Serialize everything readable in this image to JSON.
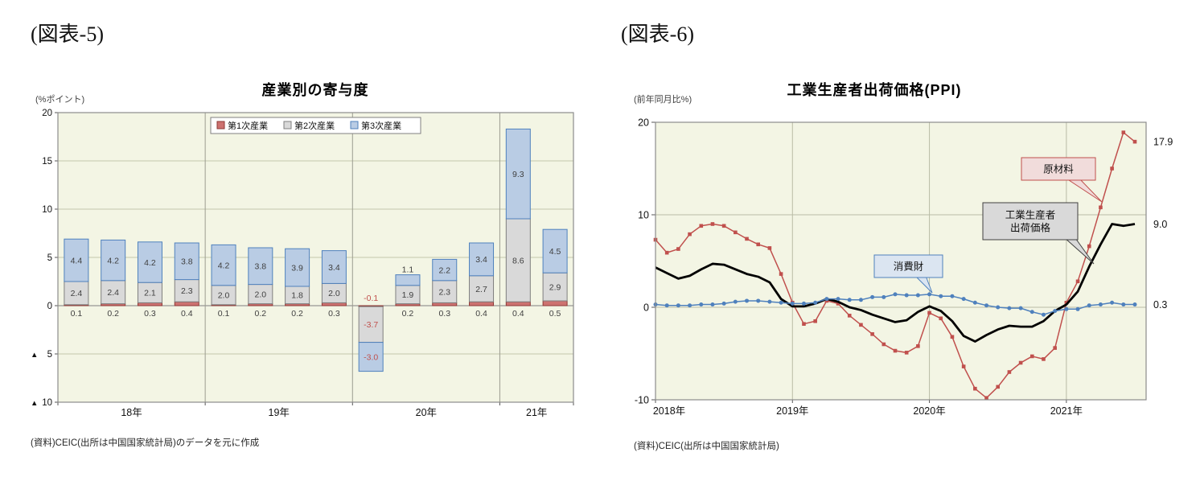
{
  "fig5": {
    "label": "(図表-5)",
    "title": "産業別の寄与度",
    "axis_unit": "(%ポイント)",
    "source": "(資料)CEIC(出所は中国国家統計局)のデータを元に作成"
  },
  "fig6": {
    "label": "(図表-6)",
    "title": "工業生産者出荷価格(PPI)",
    "axis_unit": "(前年同月比%)",
    "source": "(資料)CEIC(出所は中国国家統計局)"
  },
  "chart_data": [
    {
      "type": "bar",
      "title": "産業別の寄与度",
      "ylabel": "(%ポイント)",
      "ylim": [
        -10,
        20
      ],
      "stacked": true,
      "yticks": [
        {
          "value": 20,
          "label": "20"
        },
        {
          "value": 15,
          "label": "15"
        },
        {
          "value": 10,
          "label": "10"
        },
        {
          "value": 5,
          "label": "5"
        },
        {
          "value": 0,
          "label": "0"
        },
        {
          "value": -5,
          "label": "▲ 5"
        },
        {
          "value": -10,
          "label": "▲ 10"
        }
      ],
      "groups": [
        {
          "label": "18年",
          "count": 4
        },
        {
          "label": "19年",
          "count": 4
        },
        {
          "label": "20年",
          "count": 4
        },
        {
          "label": "21年",
          "count": 2
        }
      ],
      "series": [
        {
          "key": "primary-industry",
          "name": "第1次産業",
          "fill": "#cd7270",
          "border": "#8e3836",
          "values": [
            0.1,
            0.2,
            0.3,
            0.4,
            0.1,
            0.2,
            0.2,
            0.3,
            -0.1,
            0.2,
            0.3,
            0.4,
            0.4,
            0.5
          ]
        },
        {
          "key": "secondary-industry",
          "name": "第2次産業",
          "fill": "#d9d9d9",
          "border": "#7f7f7f",
          "values": [
            2.4,
            2.4,
            2.1,
            2.3,
            2.0,
            2.0,
            1.8,
            2.0,
            -3.7,
            1.9,
            2.3,
            2.7,
            8.6,
            2.9
          ]
        },
        {
          "key": "tertiary-industry",
          "name": "第3次産業",
          "fill": "#b9cce4",
          "border": "#4f81bd",
          "values": [
            4.4,
            4.2,
            4.2,
            3.8,
            4.2,
            3.8,
            3.9,
            3.4,
            -3.0,
            1.1,
            2.2,
            3.4,
            9.3,
            4.5
          ]
        }
      ],
      "legend_position": "top-center",
      "colors": {
        "plot_bg": "#f3f5e4",
        "grid": "#c3c6ad",
        "zero_line": "#808080",
        "frame": "#8c8c8c",
        "separator": "#9c9c90",
        "label": "#3f3f3f",
        "negative_label": "#c0504d"
      }
    },
    {
      "type": "line",
      "title": "工業生産者出荷価格(PPI)",
      "ylabel": "(前年同月比%)",
      "ylim": [
        -10,
        20
      ],
      "yticks": [
        {
          "value": 20,
          "label": "20"
        },
        {
          "value": 10,
          "label": "10"
        },
        {
          "value": 0,
          "label": "0"
        },
        {
          "value": -10,
          "label": "-10"
        }
      ],
      "xticks": [
        {
          "month": 0,
          "label": "2018年"
        },
        {
          "month": 12,
          "label": "2019年"
        },
        {
          "month": 24,
          "label": "2020年"
        },
        {
          "month": 36,
          "label": "2021年"
        }
      ],
      "series": [
        {
          "key": "raw-materials",
          "name": "原材料",
          "color": "#c0504d",
          "marker": "square",
          "width": 1.5,
          "end_label": "17.9",
          "values": [
            7.3,
            5.9,
            6.3,
            7.9,
            8.8,
            9.0,
            8.8,
            8.1,
            7.4,
            6.8,
            6.4,
            3.6,
            0.5,
            -1.8,
            -1.5,
            0.7,
            0.4,
            -0.9,
            -1.9,
            -2.9,
            -4.0,
            -4.7,
            -4.9,
            -4.2,
            -0.6,
            -1.2,
            -3.2,
            -6.4,
            -8.8,
            -9.8,
            -8.6,
            -7.0,
            -6.0,
            -5.3,
            -5.6,
            -4.4,
            0.5,
            2.8,
            6.6,
            10.8,
            15.0,
            18.9,
            17.9
          ]
        },
        {
          "key": "ppi",
          "name": "工業生産者出荷価格",
          "color": "#000000",
          "marker": "none",
          "width": 2.8,
          "end_label": "9.0",
          "values": [
            4.3,
            3.7,
            3.1,
            3.4,
            4.1,
            4.7,
            4.6,
            4.1,
            3.6,
            3.3,
            2.7,
            0.9,
            0.1,
            0.1,
            0.4,
            0.9,
            0.6,
            0.0,
            -0.3,
            -0.8,
            -1.2,
            -1.6,
            -1.4,
            -0.5,
            0.1,
            -0.4,
            -1.5,
            -3.1,
            -3.7,
            -3.0,
            -2.4,
            -2.0,
            -2.1,
            -2.1,
            -1.5,
            -0.4,
            0.3,
            1.7,
            4.4,
            6.8,
            9.0,
            8.8,
            9.0
          ]
        },
        {
          "key": "consumer-goods",
          "name": "消費財",
          "color": "#4f81bd",
          "marker": "circle",
          "width": 1.5,
          "end_label": "0.3",
          "values": [
            0.3,
            0.2,
            0.2,
            0.2,
            0.3,
            0.3,
            0.4,
            0.6,
            0.7,
            0.7,
            0.6,
            0.5,
            0.4,
            0.4,
            0.5,
            0.9,
            0.9,
            0.8,
            0.8,
            1.1,
            1.1,
            1.4,
            1.3,
            1.3,
            1.4,
            1.2,
            1.2,
            0.9,
            0.5,
            0.2,
            0.0,
            -0.1,
            -0.1,
            -0.5,
            -0.8,
            -0.4,
            -0.2,
            -0.2,
            0.2,
            0.3,
            0.5,
            0.3,
            0.3
          ]
        }
      ],
      "annotations": [
        {
          "key": "raw-materials-label",
          "lines": [
            "原材料"
          ],
          "fill": "#f1dcdb",
          "border": "#c0504d"
        },
        {
          "key": "ppi-label",
          "lines": [
            "工業生産者",
            "出荷価格"
          ],
          "fill": "#d9d9d9",
          "border": "#404040"
        },
        {
          "key": "consumer-goods-label",
          "lines": [
            "消費財"
          ],
          "fill": "#dbe5f1",
          "border": "#4f81bd"
        }
      ],
      "colors": {
        "plot_bg": "#f3f5e4",
        "grid": "#b9bca6",
        "frame": "#8c8c8c",
        "label": "#111111"
      }
    }
  ]
}
